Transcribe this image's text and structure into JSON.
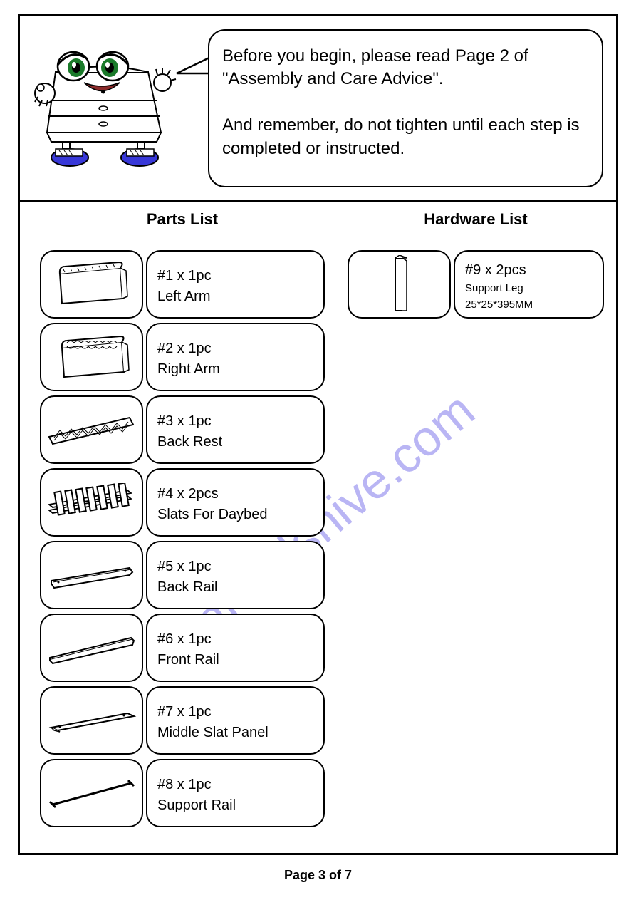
{
  "speech": {
    "line1": "Before you begin, please read Page 2 of \"Assembly and Care Advice\".",
    "line2": "And remember, do not tighten until each step is completed or instructed."
  },
  "parts_title": "Parts  List",
  "hardware_title": "Hardware  List",
  "parts": [
    {
      "qty": "#1 x 1pc",
      "name": "Left Arm"
    },
    {
      "qty": "#2 x 1pc",
      "name": "Right Arm"
    },
    {
      "qty": "#3 x 1pc",
      "name": "Back Rest"
    },
    {
      "qty": "#4 x 2pcs",
      "name": "Slats For Daybed"
    },
    {
      "qty": "#5 x 1pc",
      "name": "Back Rail"
    },
    {
      "qty": "#6 x 1pc",
      "name": "Front Rail"
    },
    {
      "qty": "#7 x 1pc",
      "name": "Middle Slat Panel"
    },
    {
      "qty": "#8 x 1pc",
      "name": "Support Rail"
    }
  ],
  "hardware": [
    {
      "qty": "#9 x 2pcs",
      "name": "Support Leg",
      "dim": "25*25*395MM"
    }
  ],
  "footer": "Page 3 of  7",
  "watermark": "manualshive.com",
  "colors": {
    "border": "#000000",
    "background": "#ffffff",
    "watermark": "rgba(100,90,230,0.45)",
    "mascot_eye": "#1a7a2a",
    "mascot_shoe": "#3838d8"
  }
}
